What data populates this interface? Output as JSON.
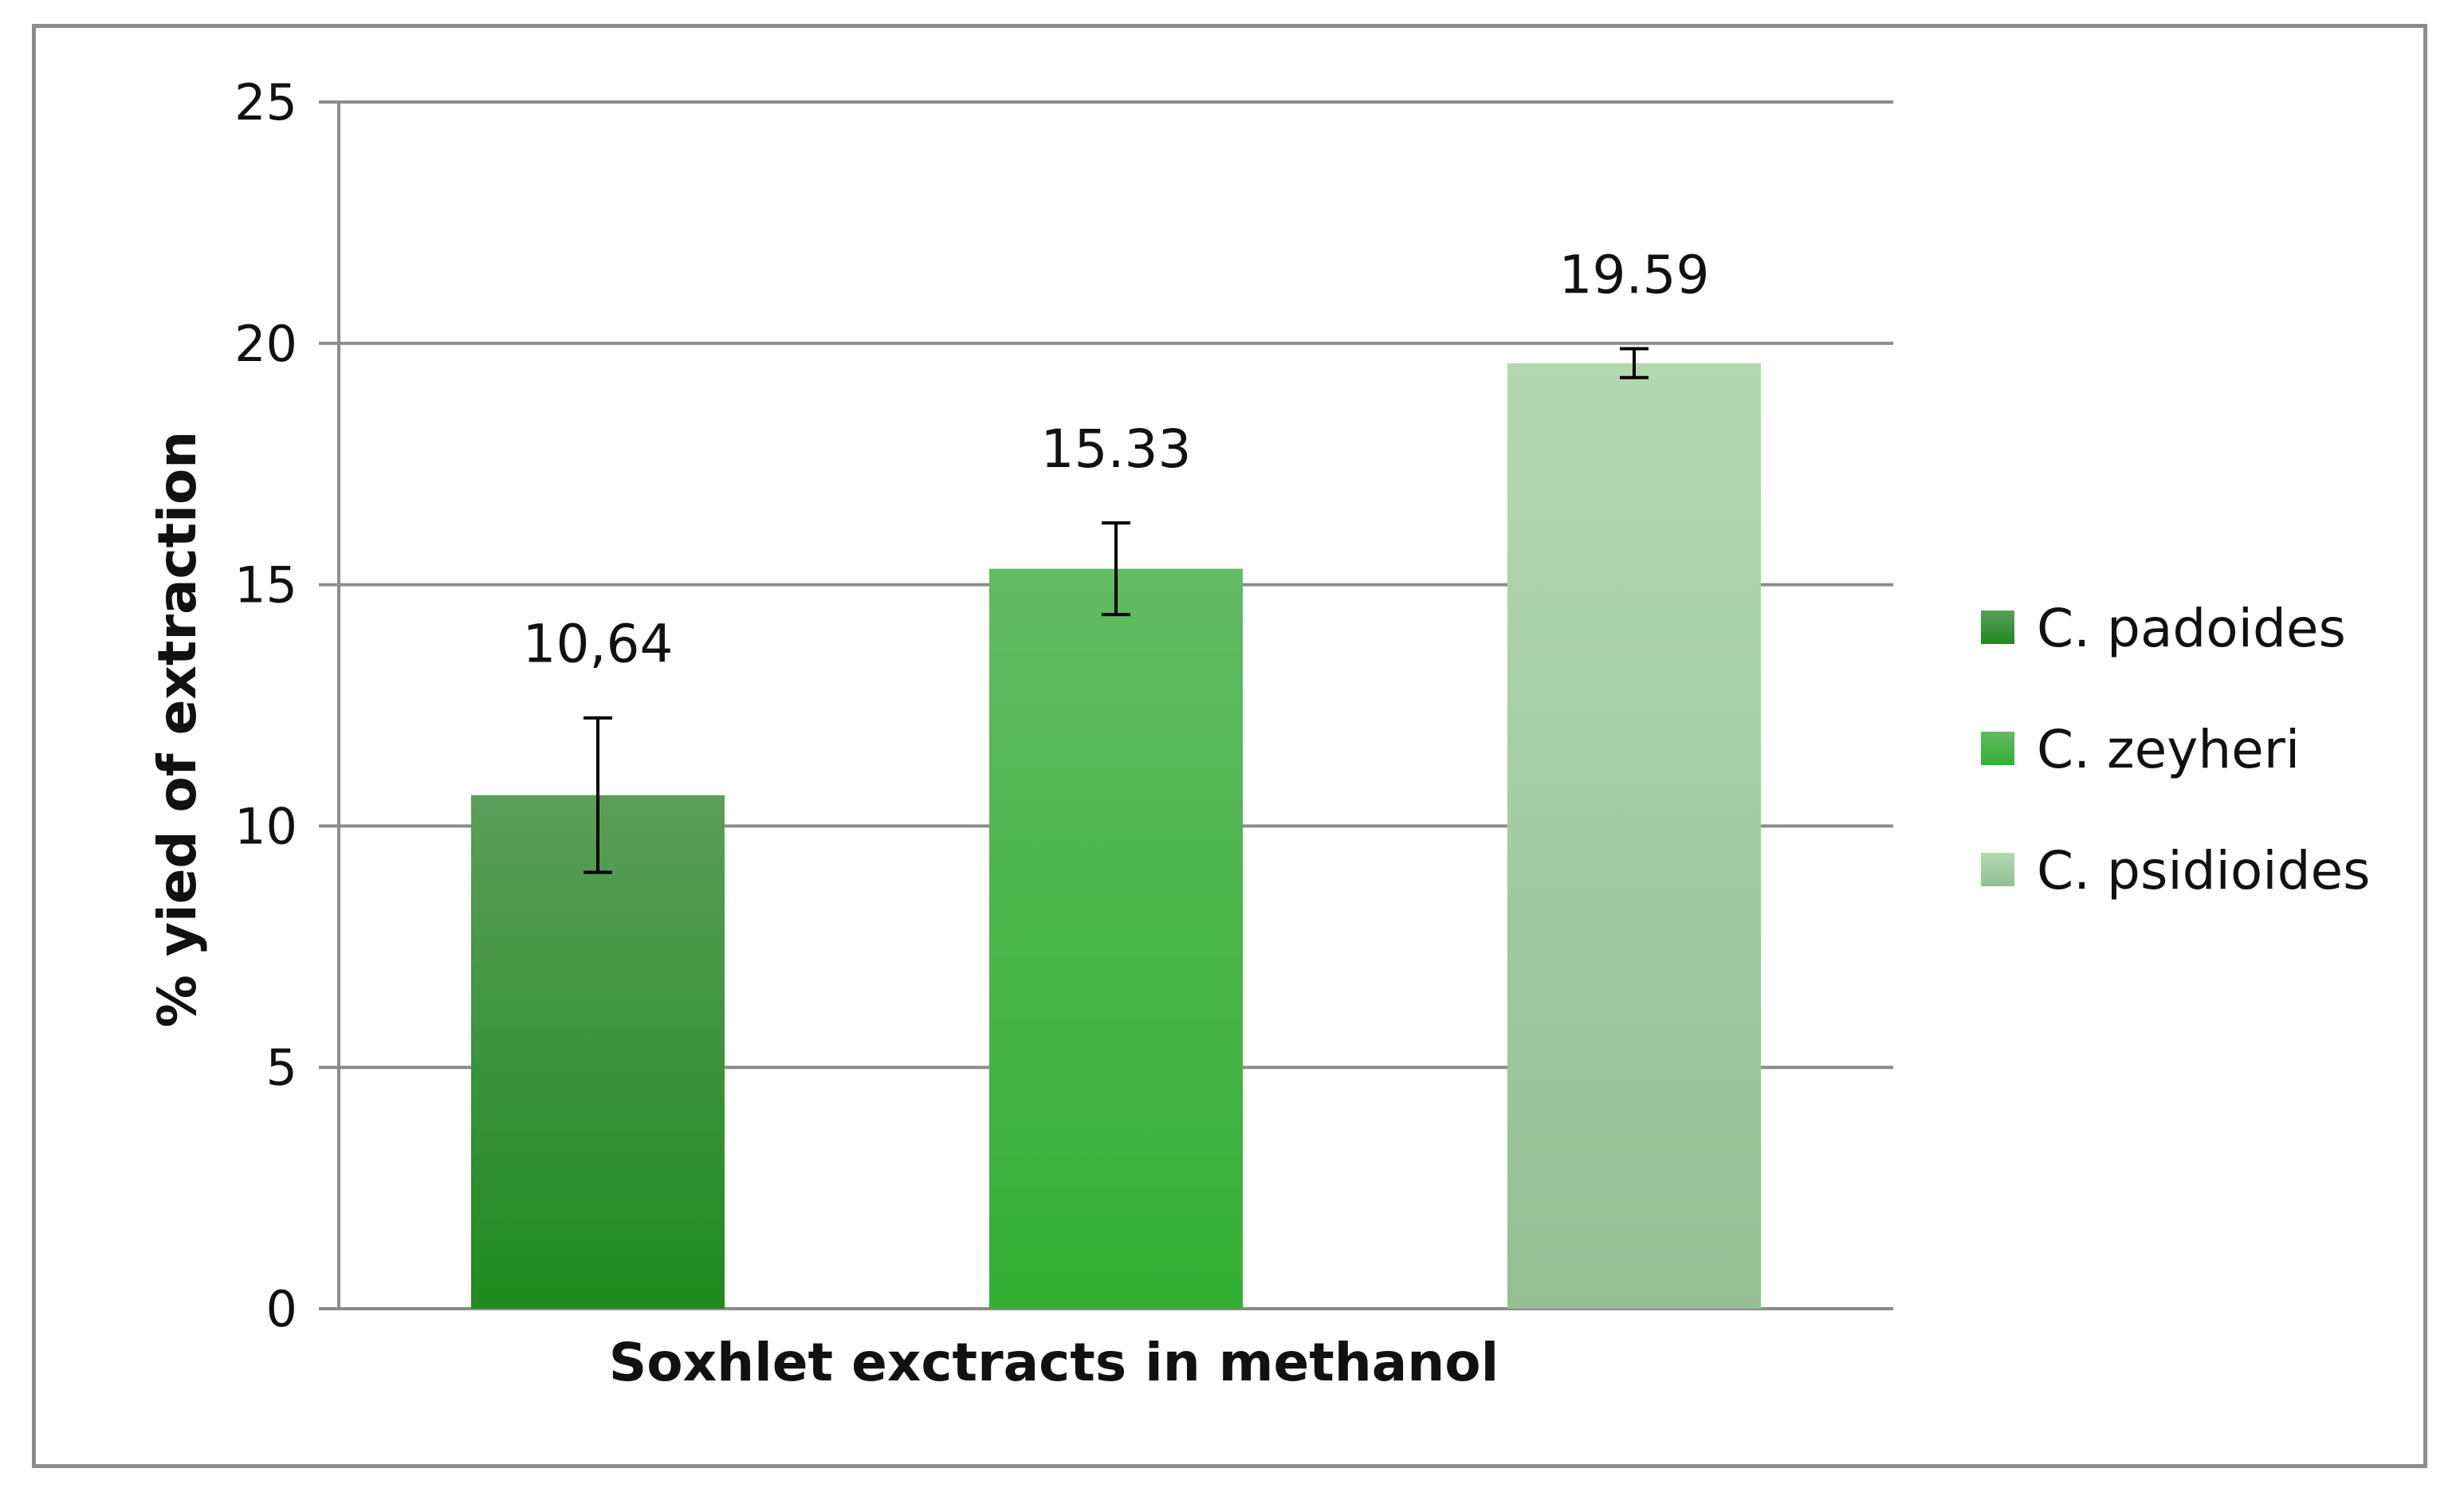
{
  "chart_data": {
    "type": "bar",
    "title": "",
    "xlabel": "Soxhlet exctracts in methanol",
    "ylabel": "% yied of extraction",
    "ylim": [
      0,
      25
    ],
    "yticks": [
      "0",
      "5",
      "10",
      "15",
      "20",
      "25"
    ],
    "grid": true,
    "legend_position": "right",
    "series": [
      {
        "name": "C. padoides",
        "value": 10.64,
        "label": "10,64",
        "error": 1.6,
        "color_top": "#5a9e5a",
        "color_bottom": "#1f8a1f"
      },
      {
        "name": "C. zeyheri",
        "value": 15.33,
        "label": "15.33",
        "error": 0.95,
        "color_top": "#62bb62",
        "color_bottom": "#33b033"
      },
      {
        "name": "C. psidioides",
        "value": 19.59,
        "label": "19.59",
        "error": 0.3,
        "color_top": "#b3d9b1",
        "color_bottom": "#93bf93"
      }
    ]
  }
}
